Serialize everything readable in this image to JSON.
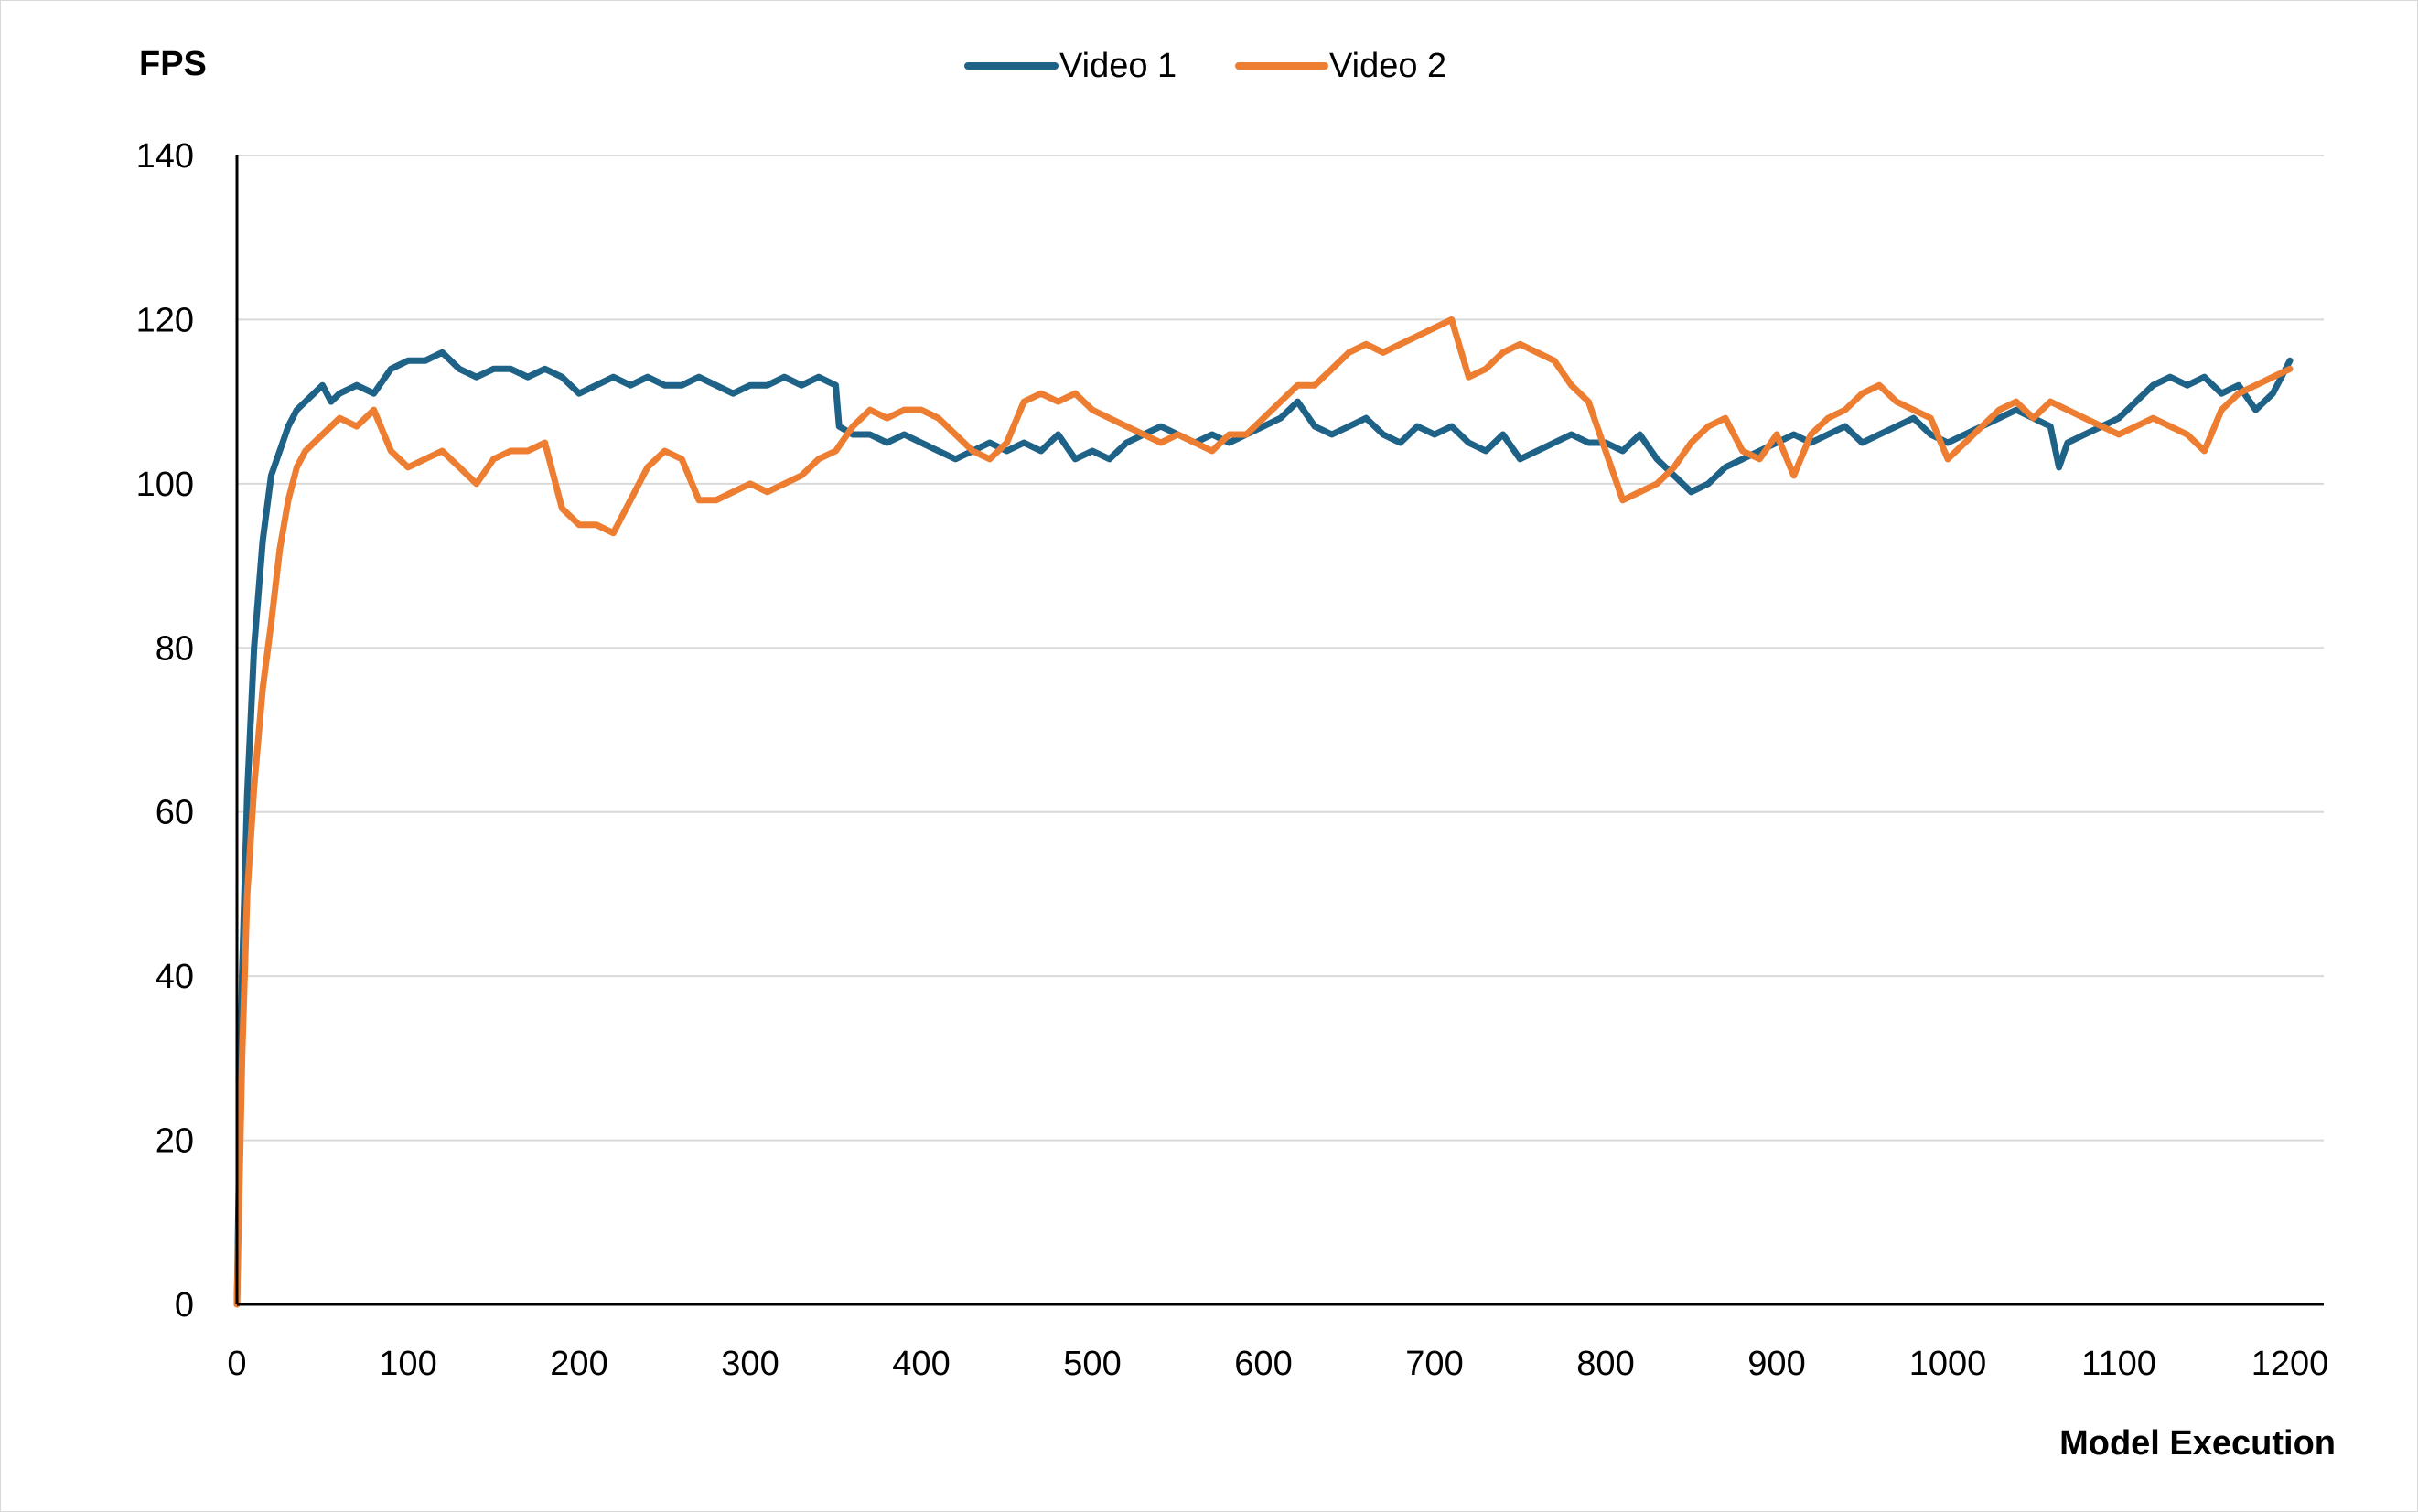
{
  "chart_data": {
    "type": "line",
    "title": "",
    "xlabel": "Model Execution",
    "ylabel": "FPS",
    "xlim": [
      0,
      1200
    ],
    "ylim": [
      0,
      140
    ],
    "x_ticks": [
      0,
      100,
      200,
      300,
      400,
      500,
      600,
      700,
      800,
      900,
      1000,
      1100,
      1200
    ],
    "y_ticks": [
      0,
      20,
      40,
      60,
      80,
      100,
      120,
      140
    ],
    "grid": "horizontal",
    "legend_position": "top-center",
    "series": [
      {
        "name": "Video 1",
        "color": "#1f6287",
        "x": [
          0,
          3,
          6,
          10,
          15,
          20,
          25,
          30,
          35,
          40,
          45,
          50,
          55,
          60,
          70,
          80,
          90,
          100,
          110,
          120,
          130,
          140,
          150,
          160,
          170,
          180,
          190,
          200,
          210,
          220,
          230,
          240,
          250,
          260,
          270,
          280,
          290,
          300,
          310,
          320,
          330,
          340,
          350,
          352,
          360,
          370,
          380,
          390,
          400,
          410,
          420,
          430,
          440,
          450,
          460,
          470,
          480,
          490,
          500,
          510,
          520,
          530,
          540,
          550,
          560,
          570,
          580,
          590,
          600,
          610,
          620,
          630,
          640,
          650,
          660,
          670,
          680,
          690,
          700,
          710,
          720,
          730,
          740,
          750,
          760,
          770,
          780,
          790,
          800,
          810,
          820,
          830,
          840,
          850,
          860,
          870,
          880,
          890,
          900,
          910,
          920,
          930,
          940,
          950,
          960,
          970,
          980,
          990,
          1000,
          1010,
          1020,
          1030,
          1040,
          1050,
          1060,
          1065,
          1070,
          1080,
          1090,
          1100,
          1110,
          1120,
          1130,
          1140,
          1150,
          1160,
          1170,
          1180,
          1190,
          1200
        ],
        "values": [
          0,
          40,
          62,
          80,
          93,
          101,
          104,
          107,
          109,
          110,
          111,
          112,
          110,
          111,
          112,
          111,
          114,
          115,
          115,
          116,
          114,
          113,
          114,
          114,
          113,
          114,
          113,
          111,
          112,
          113,
          112,
          113,
          112,
          112,
          113,
          112,
          111,
          112,
          112,
          113,
          112,
          113,
          112,
          107,
          106,
          106,
          105,
          106,
          105,
          104,
          103,
          104,
          105,
          104,
          105,
          104,
          106,
          103,
          104,
          103,
          105,
          106,
          107,
          106,
          105,
          106,
          105,
          106,
          107,
          108,
          110,
          107,
          106,
          107,
          108,
          106,
          105,
          107,
          106,
          107,
          105,
          104,
          106,
          103,
          104,
          105,
          106,
          105,
          105,
          104,
          106,
          103,
          101,
          99,
          100,
          102,
          103,
          104,
          105,
          106,
          105,
          106,
          107,
          105,
          106,
          107,
          108,
          106,
          105,
          106,
          107,
          108,
          109,
          108,
          107,
          102,
          105,
          106,
          107,
          108,
          110,
          112,
          113,
          112,
          113,
          111,
          112,
          109,
          111,
          115
        ]
      },
      {
        "name": "Video 2",
        "color": "#ed7d31",
        "x": [
          0,
          3,
          6,
          10,
          15,
          20,
          25,
          30,
          35,
          40,
          45,
          50,
          55,
          60,
          70,
          80,
          90,
          100,
          110,
          120,
          130,
          140,
          150,
          160,
          170,
          180,
          190,
          200,
          210,
          220,
          230,
          240,
          250,
          260,
          270,
          280,
          290,
          300,
          310,
          320,
          330,
          340,
          350,
          360,
          370,
          380,
          390,
          400,
          410,
          420,
          430,
          440,
          450,
          460,
          470,
          480,
          490,
          500,
          510,
          520,
          530,
          540,
          550,
          560,
          570,
          580,
          590,
          600,
          610,
          620,
          630,
          640,
          650,
          660,
          670,
          680,
          690,
          700,
          710,
          720,
          730,
          740,
          750,
          760,
          770,
          780,
          790,
          800,
          810,
          820,
          830,
          840,
          850,
          860,
          870,
          880,
          890,
          900,
          910,
          920,
          930,
          940,
          950,
          960,
          970,
          980,
          990,
          1000,
          1010,
          1020,
          1030,
          1040,
          1050,
          1060,
          1070,
          1080,
          1090,
          1100,
          1110,
          1120,
          1130,
          1140,
          1150,
          1160,
          1170,
          1180,
          1190,
          1200
        ],
        "values": [
          0,
          30,
          50,
          63,
          75,
          83,
          92,
          98,
          102,
          104,
          105,
          106,
          107,
          108,
          107,
          109,
          104,
          102,
          103,
          104,
          102,
          100,
          103,
          104,
          104,
          105,
          97,
          95,
          95,
          94,
          98,
          102,
          104,
          103,
          98,
          98,
          99,
          100,
          99,
          100,
          101,
          103,
          104,
          107,
          109,
          108,
          109,
          109,
          108,
          106,
          104,
          103,
          105,
          110,
          111,
          110,
          111,
          109,
          108,
          107,
          106,
          105,
          106,
          105,
          104,
          106,
          106,
          108,
          110,
          112,
          112,
          114,
          116,
          117,
          116,
          117,
          118,
          119,
          120,
          113,
          114,
          116,
          117,
          116,
          115,
          112,
          110,
          104,
          98,
          99,
          100,
          102,
          105,
          107,
          108,
          104,
          103,
          106,
          101,
          106,
          108,
          109,
          111,
          112,
          110,
          109,
          108,
          103,
          105,
          107,
          109,
          110,
          108,
          110,
          109,
          108,
          107,
          106,
          107,
          108,
          107,
          106,
          104,
          109,
          111,
          112,
          113,
          114
        ]
      }
    ]
  }
}
